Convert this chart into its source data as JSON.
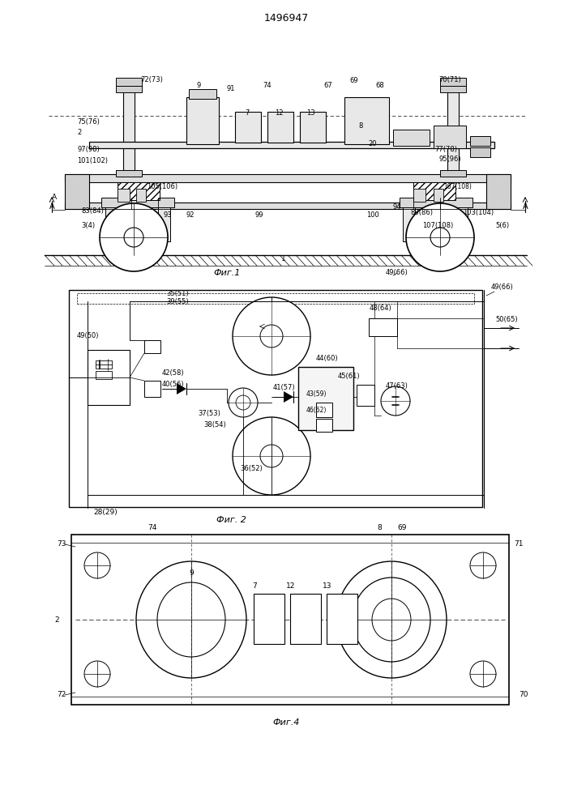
{
  "title": "1496947",
  "bg_color": "#ffffff",
  "line_color": "#000000",
  "fig1_caption": "Фиг.1",
  "fig2_caption": "Фиг. 2",
  "fig4_caption": "Фиг.4"
}
